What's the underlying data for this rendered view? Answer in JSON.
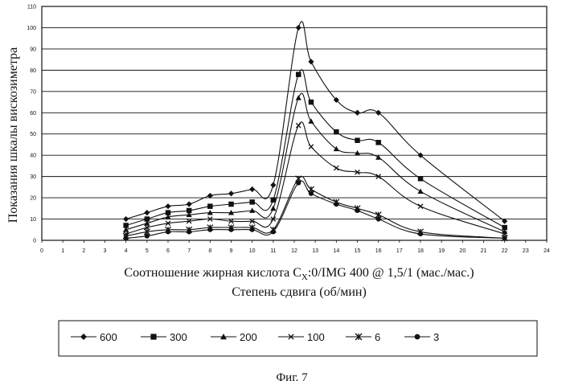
{
  "chart_data": {
    "type": "line",
    "title": "",
    "ylabel": "Показания шкалы вискозиметра",
    "xlabel_prefix": "Соотношение жирная кислота C",
    "xlabel_sub": "X",
    "xlabel_suffix": ":0/IMG 400 @ 1,5/1 (мас./мас.)",
    "xlabel_line2": "Степень сдвига (об/мин)",
    "caption": "Фиг. 7",
    "xlim": [
      0,
      24
    ],
    "ylim": [
      0,
      110
    ],
    "xticks": [
      "0",
      "1",
      "2",
      "3",
      "4",
      "5",
      "6",
      "7",
      "8",
      "9",
      "10",
      "11",
      "12",
      "13",
      "14",
      "15",
      "16",
      "17",
      "18",
      "19",
      "20",
      "21",
      "22",
      "23",
      "24"
    ],
    "yticks": [
      "0",
      "10",
      "20",
      "30",
      "40",
      "50",
      "60",
      "70",
      "80",
      "90",
      "100",
      "110"
    ],
    "grid": "horizontal",
    "legend_position": "bottom",
    "color": "#111111",
    "series": [
      {
        "name": "600",
        "marker": "diamond",
        "x": [
          4,
          5,
          6,
          7,
          8,
          9,
          10,
          11,
          12.2,
          12.8,
          14,
          15,
          16,
          18,
          22
        ],
        "y": [
          10,
          13,
          16,
          17,
          21,
          22,
          24,
          26,
          100,
          84,
          66,
          60,
          60,
          40,
          9
        ]
      },
      {
        "name": "300",
        "marker": "square",
        "x": [
          4,
          5,
          6,
          7,
          8,
          9,
          10,
          11,
          12.2,
          12.8,
          14,
          15,
          16,
          18,
          22
        ],
        "y": [
          7,
          10,
          13,
          14,
          16,
          17,
          18,
          19,
          78,
          65,
          51,
          47,
          46,
          29,
          6
        ]
      },
      {
        "name": "200",
        "marker": "triangle",
        "x": [
          4,
          5,
          6,
          7,
          8,
          9,
          10,
          11,
          12.2,
          12.8,
          14,
          15,
          16,
          18,
          22
        ],
        "y": [
          5,
          8,
          11,
          12,
          13,
          13,
          14,
          15,
          67,
          56,
          43,
          41,
          39,
          23,
          4
        ]
      },
      {
        "name": "100",
        "marker": "x",
        "x": [
          4,
          5,
          6,
          7,
          8,
          9,
          10,
          11,
          12.2,
          12.8,
          14,
          15,
          16,
          18,
          22
        ],
        "y": [
          3,
          6,
          8,
          9,
          10,
          9,
          9,
          10,
          54,
          44,
          34,
          32,
          30,
          16,
          3
        ]
      },
      {
        "name": "6",
        "marker": "zhe",
        "x": [
          4,
          5,
          6,
          7,
          8,
          9,
          10,
          11,
          12.2,
          12.8,
          14,
          15,
          16,
          18,
          22
        ],
        "y": [
          2,
          4,
          5,
          5,
          6,
          6,
          6,
          5,
          29,
          24,
          18,
          15,
          12,
          4,
          1
        ]
      },
      {
        "name": "3",
        "marker": "circle",
        "x": [
          4,
          5,
          6,
          7,
          8,
          9,
          10,
          11,
          12.2,
          12.8,
          14,
          15,
          16,
          18,
          22
        ],
        "y": [
          1,
          2,
          4,
          4,
          5,
          5,
          5,
          4,
          27,
          22,
          17,
          14,
          10,
          3,
          1
        ]
      }
    ]
  }
}
